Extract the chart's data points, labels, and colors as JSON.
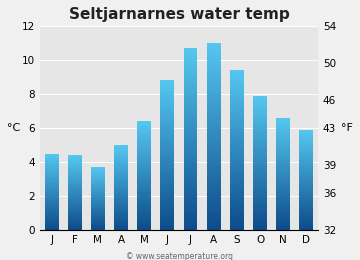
{
  "title": "Seltjarnarnes water temp",
  "months": [
    "J",
    "F",
    "M",
    "A",
    "M",
    "J",
    "J",
    "A",
    "S",
    "O",
    "N",
    "D"
  ],
  "values_c": [
    4.5,
    4.4,
    3.7,
    5.0,
    6.4,
    8.8,
    10.7,
    11.0,
    9.4,
    7.9,
    6.6,
    5.9
  ],
  "ylim_c": [
    0,
    12
  ],
  "yticks_c": [
    0,
    2,
    4,
    6,
    8,
    10,
    12
  ],
  "yticks_f": [
    32,
    36,
    39,
    43,
    46,
    50,
    54
  ],
  "ylabel_left": "°C",
  "ylabel_right": "°F",
  "bar_color_top": "#55c8f0",
  "bar_color_bottom": "#0d4b8a",
  "background_color": "#f0f0f0",
  "plot_bg_color": "#e6e6e6",
  "title_fontsize": 11,
  "axis_fontsize": 8,
  "tick_fontsize": 7.5,
  "watermark": "© www.seatemperature.org"
}
